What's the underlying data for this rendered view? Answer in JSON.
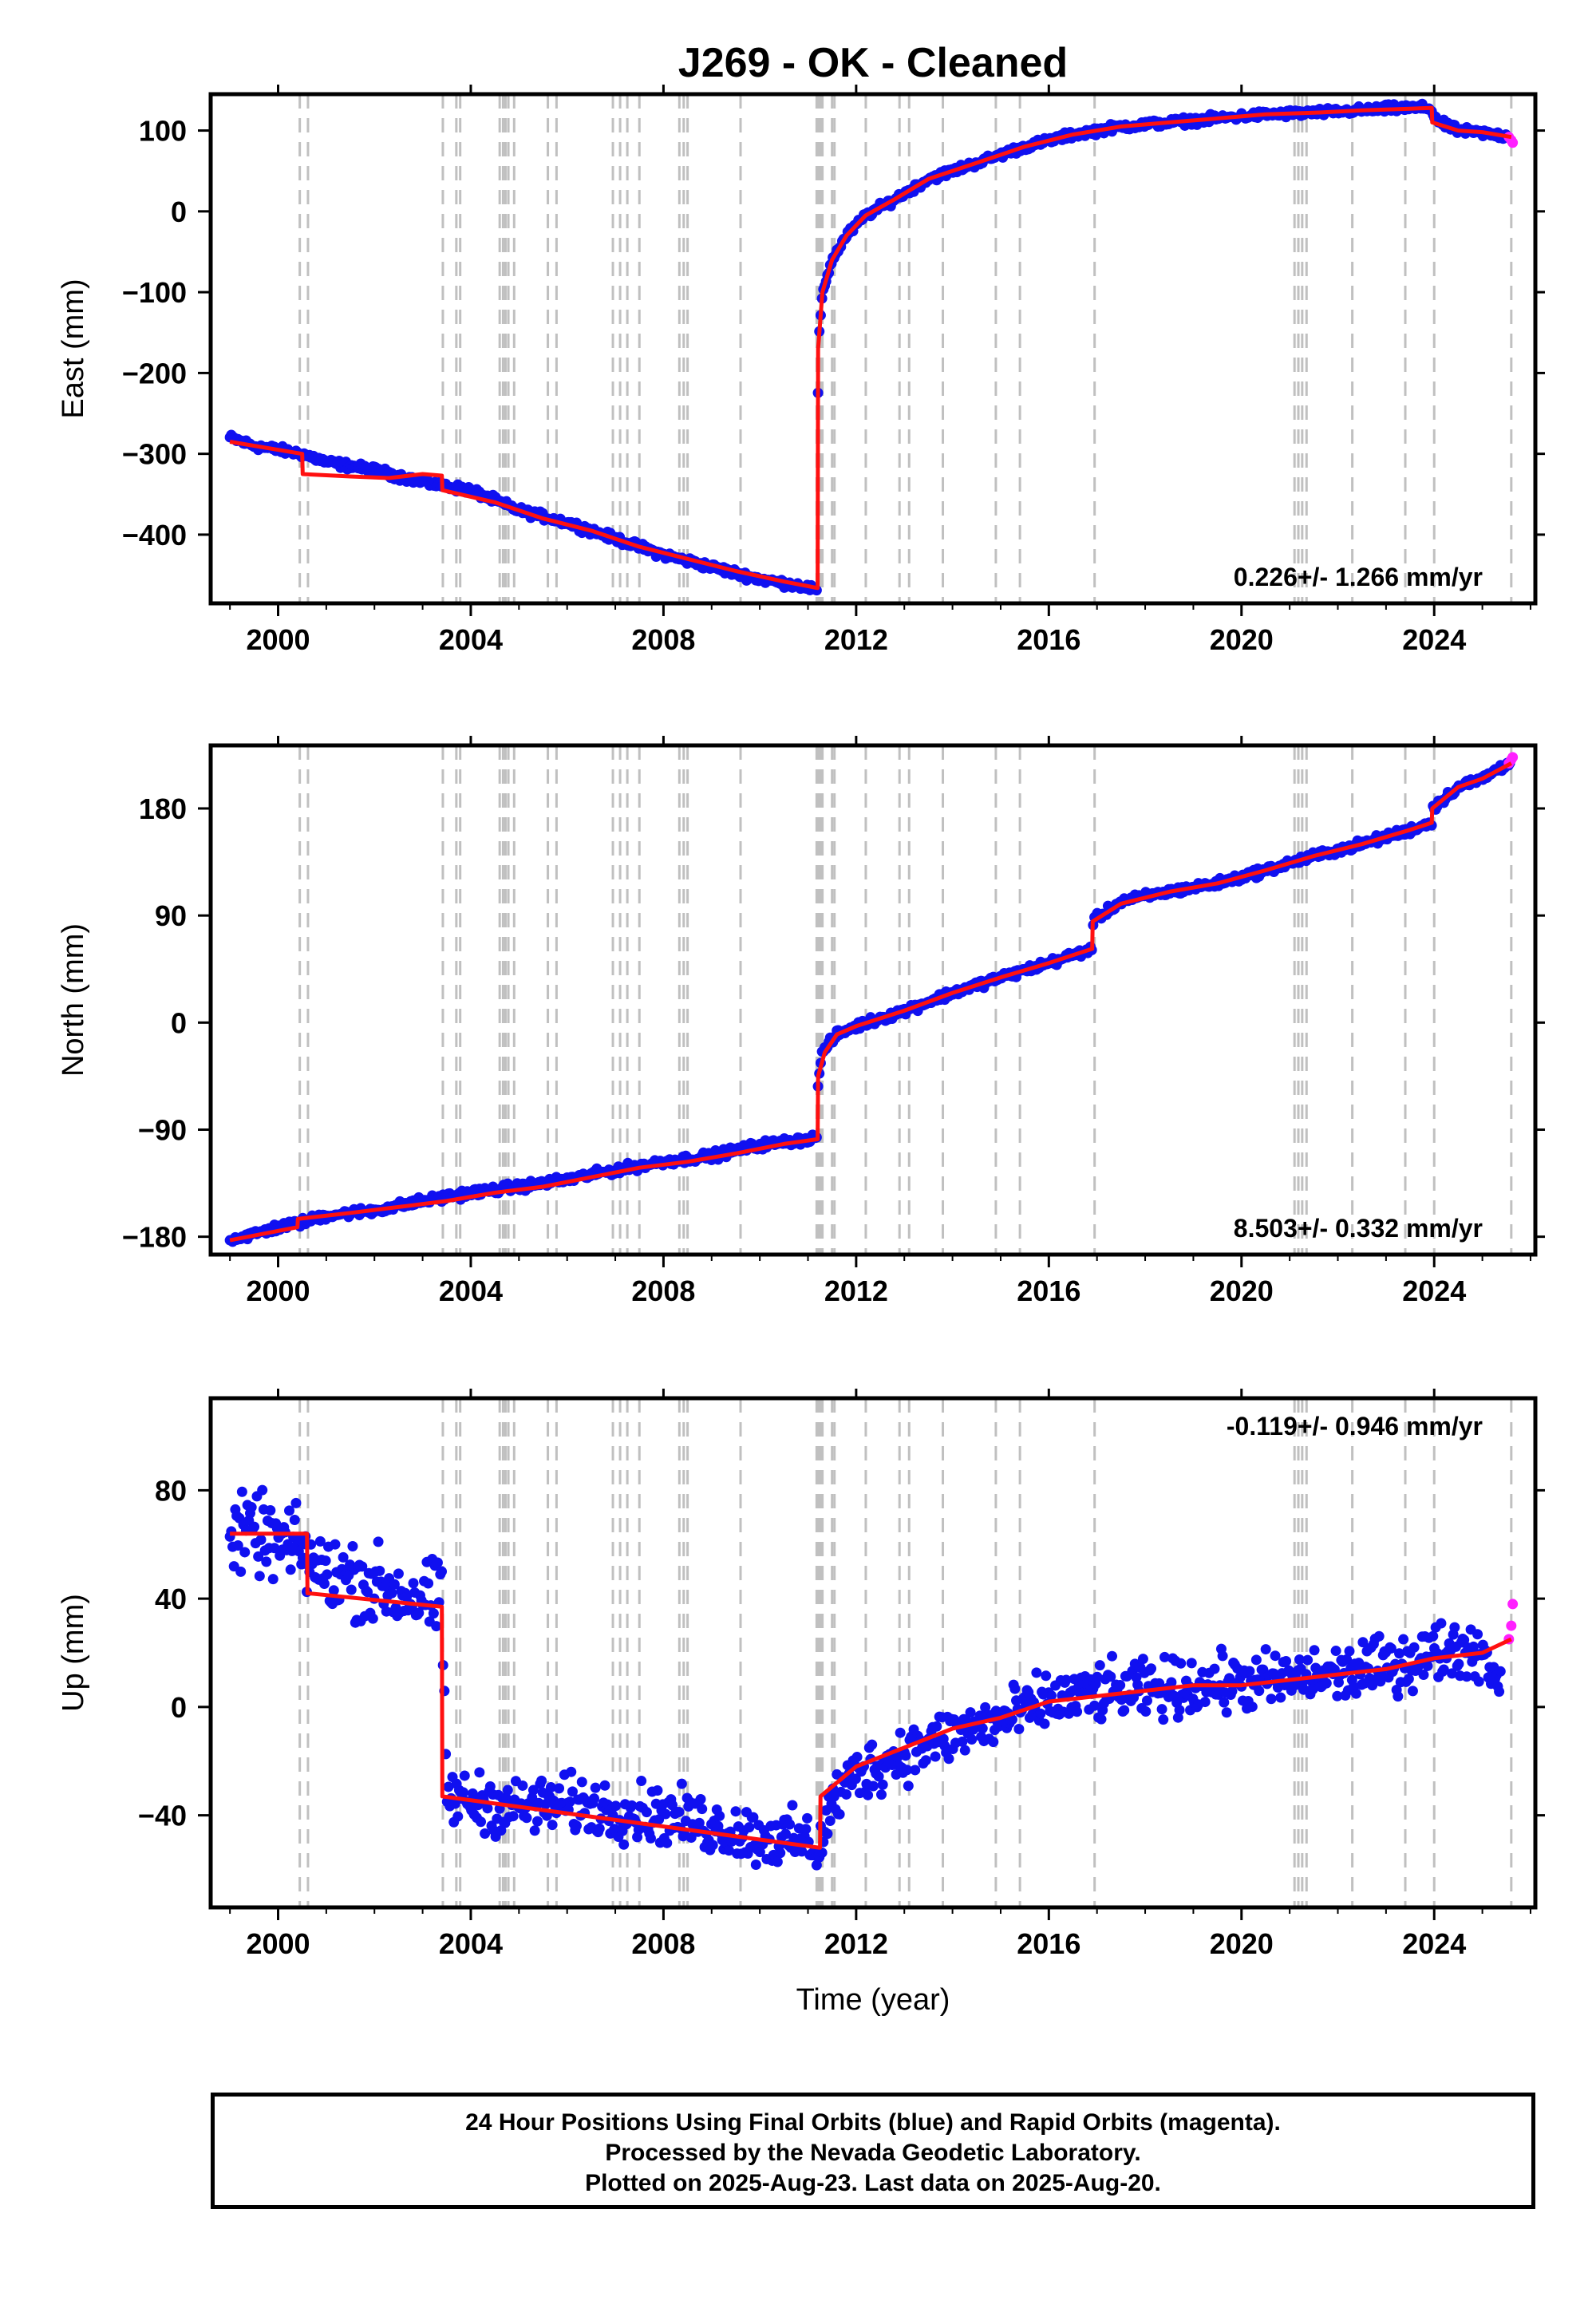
{
  "figure": {
    "title": "J269  - OK - Cleaned",
    "xlabel": "Time (year)",
    "caption": [
      "24 Hour Positions Using Final Orbits (blue) and Rapid Orbits (magenta).",
      "Processed by the Nevada Geodetic Laboratory.",
      "Plotted on 2025-Aug-23. Last data on 2025-Aug-20."
    ]
  },
  "colors": {
    "final_orbits": "#1010f0",
    "rapid_orbits": "#ff20ff",
    "model": "#ff1010",
    "event_lines": "#c0c0c0"
  },
  "chart_data": [
    {
      "type": "scatter",
      "name": "east",
      "ylabel": "East (mm)",
      "rate_label": "0.226+/- 1.266 mm/yr",
      "xlim": [
        1998.6,
        2026.1
      ],
      "ylim": [
        -485,
        145
      ],
      "xticks": [
        2000,
        2004,
        2008,
        2012,
        2016,
        2020,
        2024
      ],
      "yticks": [
        -400,
        -300,
        -200,
        -100,
        0,
        100
      ],
      "grid": false,
      "series": [
        {
          "name": "24 Hour Positions Using Final Orbits",
          "color": "blue",
          "x": [
            1999.0,
            1999.5,
            2000.0,
            2000.5,
            2001.0,
            2002.0,
            2003.0,
            2004.0,
            2005.0,
            2006.0,
            2007.0,
            2008.0,
            2009.0,
            2010.0,
            2011.0,
            2011.2,
            2011.21,
            2011.3,
            2011.5,
            2011.8,
            2012.2,
            2012.8,
            2013.5,
            2014.5,
            2015.5,
            2016.5,
            2017.5,
            2018.5,
            2019.5,
            2020.5,
            2021.5,
            2022.5,
            2023.0,
            2023.5,
            2023.9,
            2024.1,
            2024.5,
            2025.0,
            2025.5
          ],
          "y": [
            -280,
            -290,
            -295,
            -300,
            -310,
            -320,
            -335,
            -345,
            -370,
            -385,
            -405,
            -425,
            -440,
            -455,
            -465,
            -470,
            -170,
            -100,
            -60,
            -30,
            -5,
            15,
            40,
            60,
            80,
            95,
            105,
            110,
            115,
            120,
            122,
            125,
            127,
            128,
            128,
            110,
            100,
            97,
            93
          ]
        },
        {
          "name": "Rapid Orbits",
          "color": "magenta",
          "x": [
            2025.55,
            2025.6,
            2025.63
          ],
          "y": [
            92,
            88,
            85
          ]
        },
        {
          "name": "Model",
          "color": "red",
          "x": [
            1999.0,
            2000.5,
            2000.51,
            2001.5,
            2002.3,
            2003.0,
            2003.4,
            2003.41,
            2004.5,
            2005.5,
            2006.5,
            2007.5,
            2008.5,
            2009.5,
            2010.5,
            2011.2,
            2011.21,
            2011.3,
            2011.5,
            2011.8,
            2012.2,
            2012.8,
            2013.5,
            2014.5,
            2015.5,
            2016.5,
            2017.5,
            2018.5,
            2019.5,
            2020.5,
            2021.5,
            2022.5,
            2023.5,
            2023.95,
            2023.96,
            2024.5,
            2025.0,
            2025.6
          ],
          "y": [
            -285,
            -300,
            -325,
            -328,
            -330,
            -325,
            -327,
            -345,
            -360,
            -380,
            -395,
            -415,
            -430,
            -445,
            -458,
            -466,
            -170,
            -100,
            -60,
            -30,
            -5,
            15,
            40,
            60,
            80,
            95,
            105,
            110,
            115,
            120,
            122,
            125,
            127,
            128,
            110,
            100,
            98,
            92
          ]
        }
      ]
    },
    {
      "type": "scatter",
      "name": "north",
      "ylabel": "North (mm)",
      "rate_label": "8.503+/- 0.332 mm/yr",
      "xlim": [
        1998.6,
        2026.1
      ],
      "ylim": [
        -195,
        233
      ],
      "xticks": [
        2000,
        2004,
        2008,
        2012,
        2016,
        2020,
        2024
      ],
      "yticks": [
        -180,
        -90,
        0,
        90,
        180
      ],
      "grid": false,
      "series": [
        {
          "name": "24 Hour Positions Using Final Orbits",
          "color": "blue",
          "x": [
            1999.0,
            1999.5,
            2000.0,
            2000.5,
            2001.0,
            2002.0,
            2003.0,
            2004.0,
            2005.0,
            2006.0,
            2007.0,
            2008.0,
            2009.0,
            2010.0,
            2011.0,
            2011.2,
            2011.21,
            2011.3,
            2011.6,
            2012.0,
            2013.0,
            2014.0,
            2015.0,
            2016.0,
            2016.9,
            2016.91,
            2017.5,
            2018.5,
            2019.5,
            2020.5,
            2021.5,
            2022.5,
            2023.5,
            2023.95,
            2023.96,
            2024.5,
            2025.0,
            2025.6
          ],
          "y": [
            -182,
            -178,
            -172,
            -168,
            -162,
            -158,
            -150,
            -143,
            -138,
            -132,
            -124,
            -117,
            -112,
            -103,
            -98,
            -96,
            -45,
            -25,
            -10,
            -3,
            10,
            25,
            38,
            50,
            62,
            85,
            102,
            110,
            117,
            128,
            140,
            150,
            162,
            168,
            180,
            198,
            205,
            220
          ]
        },
        {
          "name": "Rapid Orbits",
          "color": "magenta",
          "x": [
            2025.55,
            2025.6,
            2025.63
          ],
          "y": [
            218,
            221,
            223
          ]
        },
        {
          "name": "Model",
          "color": "red",
          "x": [
            1999.0,
            2000.4,
            2000.41,
            2001.5,
            2002.5,
            2003.5,
            2004.5,
            2005.5,
            2006.5,
            2007.5,
            2008.5,
            2009.5,
            2010.5,
            2011.2,
            2011.21,
            2011.35,
            2011.6,
            2012.0,
            2013.0,
            2014.0,
            2015.0,
            2016.0,
            2016.9,
            2016.91,
            2017.5,
            2018.5,
            2019.5,
            2020.5,
            2021.5,
            2022.5,
            2023.5,
            2023.95,
            2023.96,
            2024.5,
            2025.0,
            2025.6
          ],
          "y": [
            -183,
            -172,
            -165,
            -160,
            -155,
            -150,
            -143,
            -138,
            -130,
            -122,
            -117,
            -110,
            -102,
            -98,
            -45,
            -25,
            -10,
            -3,
            10,
            25,
            38,
            50,
            62,
            85,
            100,
            110,
            117,
            128,
            140,
            150,
            162,
            168,
            180,
            198,
            205,
            218
          ]
        }
      ]
    },
    {
      "type": "scatter",
      "name": "up",
      "ylabel": "Up (mm)",
      "rate_label": "-0.119+/- 0.946 mm/yr",
      "xlim": [
        1998.6,
        2026.1
      ],
      "ylim": [
        -74,
        114
      ],
      "xticks": [
        2000,
        2004,
        2008,
        2012,
        2016,
        2020,
        2024
      ],
      "yticks": [
        -40,
        0,
        40,
        80
      ],
      "grid": false,
      "series": [
        {
          "name": "24 Hour Positions Using Final Orbits",
          "color": "blue",
          "x": [
            1999.0,
            1999.5,
            2000.0,
            2000.5,
            2000.8,
            2001.5,
            2002.0,
            2002.5,
            2003.0,
            2003.4,
            2003.5,
            2004.0,
            2005.0,
            2006.0,
            2007.0,
            2008.0,
            2009.0,
            2010.0,
            2011.0,
            2011.25,
            2011.5,
            2012.0,
            2013.0,
            2014.0,
            2015.0,
            2016.0,
            2017.0,
            2018.0,
            2019.0,
            2020.0,
            2021.0,
            2022.0,
            2023.0,
            2024.0,
            2024.5,
            2025.0,
            2025.4
          ],
          "y": [
            60,
            65,
            60,
            58,
            50,
            48,
            45,
            42,
            40,
            38,
            -33,
            -35,
            -37,
            -36,
            -38,
            -40,
            -44,
            -48,
            -50,
            -52,
            -35,
            -25,
            -17,
            -10,
            -5,
            2,
            5,
            6,
            8,
            9,
            10,
            12,
            15,
            20,
            22,
            20,
            10
          ]
        },
        {
          "name": "Rapid Orbits",
          "color": "magenta",
          "x": [
            2025.55,
            2025.6,
            2025.63
          ],
          "y": [
            25,
            30,
            38
          ]
        },
        {
          "name": "Model",
          "color": "red",
          "x": [
            1999.0,
            2000.6,
            2000.61,
            2003.4,
            2003.41,
            2011.25,
            2011.26,
            2012.0,
            2013.0,
            2014.0,
            2015.0,
            2016.0,
            2017.0,
            2018.0,
            2019.0,
            2020.0,
            2021.0,
            2022.0,
            2023.0,
            2024.0,
            2025.0,
            2025.6
          ],
          "y": [
            64,
            64,
            42,
            37,
            -33,
            -52,
            -33,
            -22,
            -15,
            -8,
            -4,
            2,
            4,
            6,
            8,
            8,
            10,
            12,
            14,
            18,
            20,
            25
          ]
        }
      ]
    }
  ]
}
